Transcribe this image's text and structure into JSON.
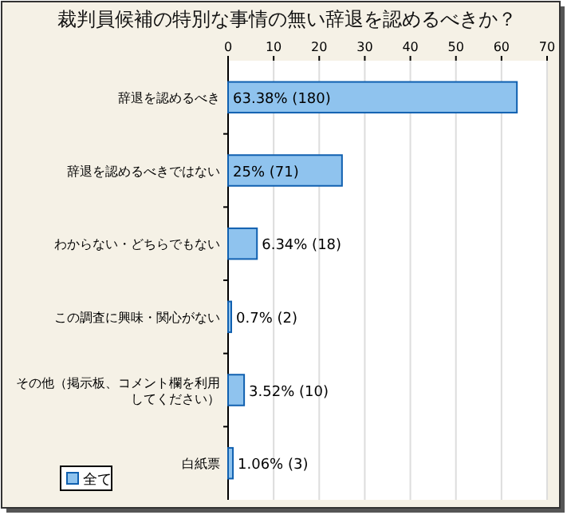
{
  "chart_data": {
    "type": "bar",
    "orientation": "horizontal",
    "title": "裁判員候補の特別な事情の無い辞退を認めるべきか？",
    "categories": [
      "辞退を認めるべき",
      "辞退を認めるべきではない",
      "わからない・どちらでもない",
      "この調査に興味・関心がない",
      "その他（掲示板、コメント欄を利用してください）",
      "白紙票"
    ],
    "series": [
      {
        "name": "全て",
        "color": "#8fc3ee",
        "values": [
          63.38,
          25,
          6.34,
          0.7,
          3.52,
          1.06
        ],
        "value_labels": [
          "63.38% (180)",
          "25% (71)",
          "6.34% (18)",
          "0.7% (2)",
          "3.52% (10)",
          "1.06% (3)"
        ]
      }
    ],
    "xlim": [
      0,
      70
    ],
    "xticks": [
      0,
      10,
      20,
      30,
      40,
      50,
      60,
      70
    ],
    "grid": "x",
    "legend": "bottom left"
  }
}
